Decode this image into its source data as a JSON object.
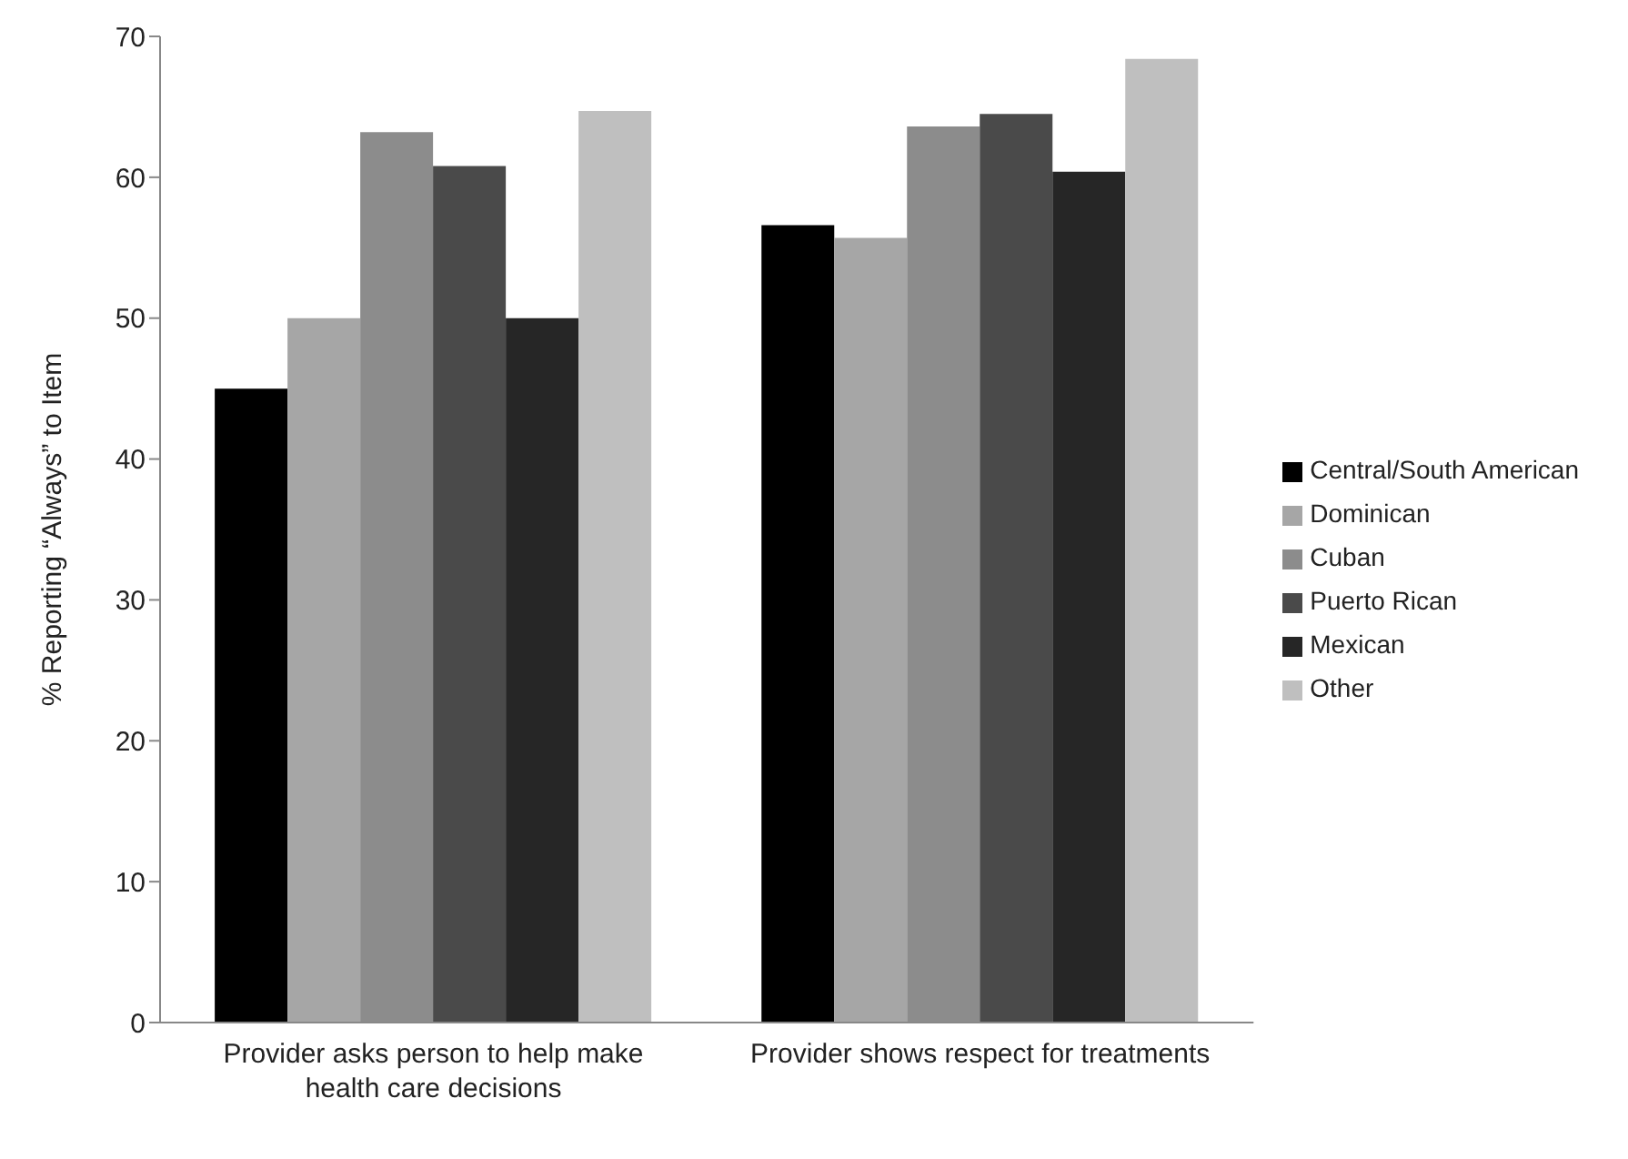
{
  "chart_data": {
    "type": "bar",
    "ylabel": "% Reporting “Always” to Item",
    "categories": [
      "Provider asks person to help make health care decisions",
      "Provider shows respect for treatments"
    ],
    "series": [
      {
        "name": "Central/South American",
        "color": "#000000",
        "values": [
          45,
          56.6
        ]
      },
      {
        "name": "Dominican",
        "color": "#a6a6a6",
        "values": [
          50,
          55.7
        ]
      },
      {
        "name": "Cuban",
        "color": "#8c8c8c",
        "values": [
          63.2,
          63.6
        ]
      },
      {
        "name": "Puerto Rican",
        "color": "#4a4a4a",
        "values": [
          60.8,
          64.5
        ]
      },
      {
        "name": "Mexican",
        "color": "#262626",
        "values": [
          50,
          60.4
        ]
      },
      {
        "name": "Other",
        "color": "#bfbfbf",
        "values": [
          64.7,
          68.4
        ]
      }
    ],
    "ylim": [
      0,
      70
    ],
    "yticks": [
      0,
      10,
      20,
      30,
      40,
      50,
      60,
      70
    ],
    "grid": false,
    "legend": "right"
  }
}
